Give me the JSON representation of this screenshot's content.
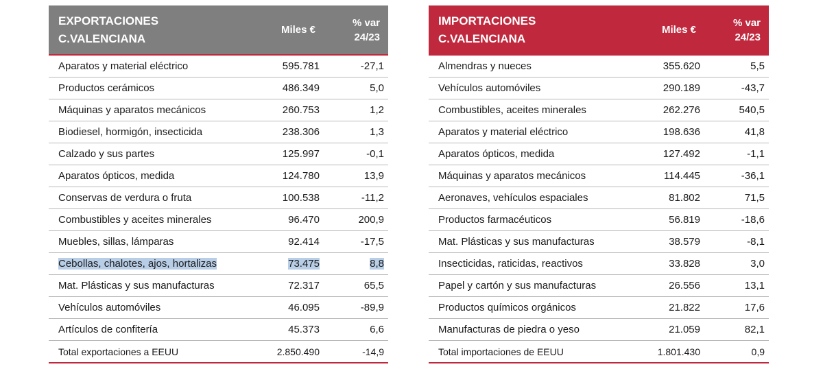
{
  "exports": {
    "title_line1": "EXPORTACIONES",
    "title_line2": "C.VALENCIANA",
    "col_miles": "Miles €",
    "col_var_line1": "% var",
    "col_var_line2": "24/23",
    "rows": [
      {
        "name": "Aparatos y material eléctrico",
        "miles": "595.781",
        "var": "-27,1"
      },
      {
        "name": "Productos cerámicos",
        "miles": "486.349",
        "var": "5,0"
      },
      {
        "name": "Máquinas y aparatos mecánicos",
        "miles": "260.753",
        "var": "1,2"
      },
      {
        "name": "Biodiesel, hormigón, insecticida",
        "miles": "238.306",
        "var": "1,3"
      },
      {
        "name": "Calzado y sus partes",
        "miles": "125.997",
        "var": "-0,1"
      },
      {
        "name": "Aparatos ópticos, medida",
        "miles": "124.780",
        "var": "13,9"
      },
      {
        "name": "Conservas de verdura o fruta",
        "miles": "100.538",
        "var": "-11,2"
      },
      {
        "name": "Combustibles y aceites minerales",
        "miles": "96.470",
        "var": "200,9"
      },
      {
        "name": "Muebles, sillas, lámparas",
        "miles": "92.414",
        "var": "-17,5"
      },
      {
        "name": "Cebollas, chalotes, ajos, hortalizas",
        "miles": "73.475",
        "var": "8,8"
      },
      {
        "name": "Mat. Plásticas y sus manufacturas",
        "miles": "72.317",
        "var": "65,5"
      },
      {
        "name": "Vehículos automóviles",
        "miles": "46.095",
        "var": "-89,9"
      },
      {
        "name": "Artículos de confitería",
        "miles": "45.373",
        "var": "6,6"
      }
    ],
    "total": {
      "name": "Total exportaciones a EEUU",
      "miles": "2.850.490",
      "var": "-14,9"
    }
  },
  "imports": {
    "title_line1": "IMPORTACIONES",
    "title_line2": "C.VALENCIANA",
    "col_miles": "Miles €",
    "col_var_line1": "% var",
    "col_var_line2": "24/23",
    "rows": [
      {
        "name": "Almendras y nueces",
        "miles": "355.620",
        "var": "5,5"
      },
      {
        "name": "Vehículos automóviles",
        "miles": "290.189",
        "var": "-43,7"
      },
      {
        "name": "Combustibles, aceites minerales",
        "miles": "262.276",
        "var": "540,5"
      },
      {
        "name": "Aparatos y material eléctrico",
        "miles": "198.636",
        "var": "41,8"
      },
      {
        "name": "Aparatos ópticos, medida",
        "miles": "127.492",
        "var": "-1,1"
      },
      {
        "name": "Máquinas y aparatos mecánicos",
        "miles": "114.445",
        "var": "-36,1"
      },
      {
        "name": "Aeronaves, vehículos espaciales",
        "miles": "81.802",
        "var": "71,5"
      },
      {
        "name": "Productos farmacéuticos",
        "miles": "56.819",
        "var": "-18,6"
      },
      {
        "name": "Mat. Plásticas y sus manufacturas",
        "miles": "38.579",
        "var": "-8,1"
      },
      {
        "name": "Insecticidas, raticidas, reactivos",
        "miles": "33.828",
        "var": "3,0"
      },
      {
        "name": "Papel y cartón y sus manufacturas",
        "miles": "26.556",
        "var": "13,1"
      },
      {
        "name": "Productos químicos orgánicos",
        "miles": "21.822",
        "var": "17,6"
      },
      {
        "name": "Manufacturas de piedra o yeso",
        "miles": "21.059",
        "var": "82,1"
      }
    ],
    "total": {
      "name": "Total importaciones de EEUU",
      "miles": "1.801.430",
      "var": "0,9"
    }
  },
  "selection_color": "#b8cde6",
  "export_header_color": "#7f7f7f",
  "import_header_color": "#c0283d"
}
